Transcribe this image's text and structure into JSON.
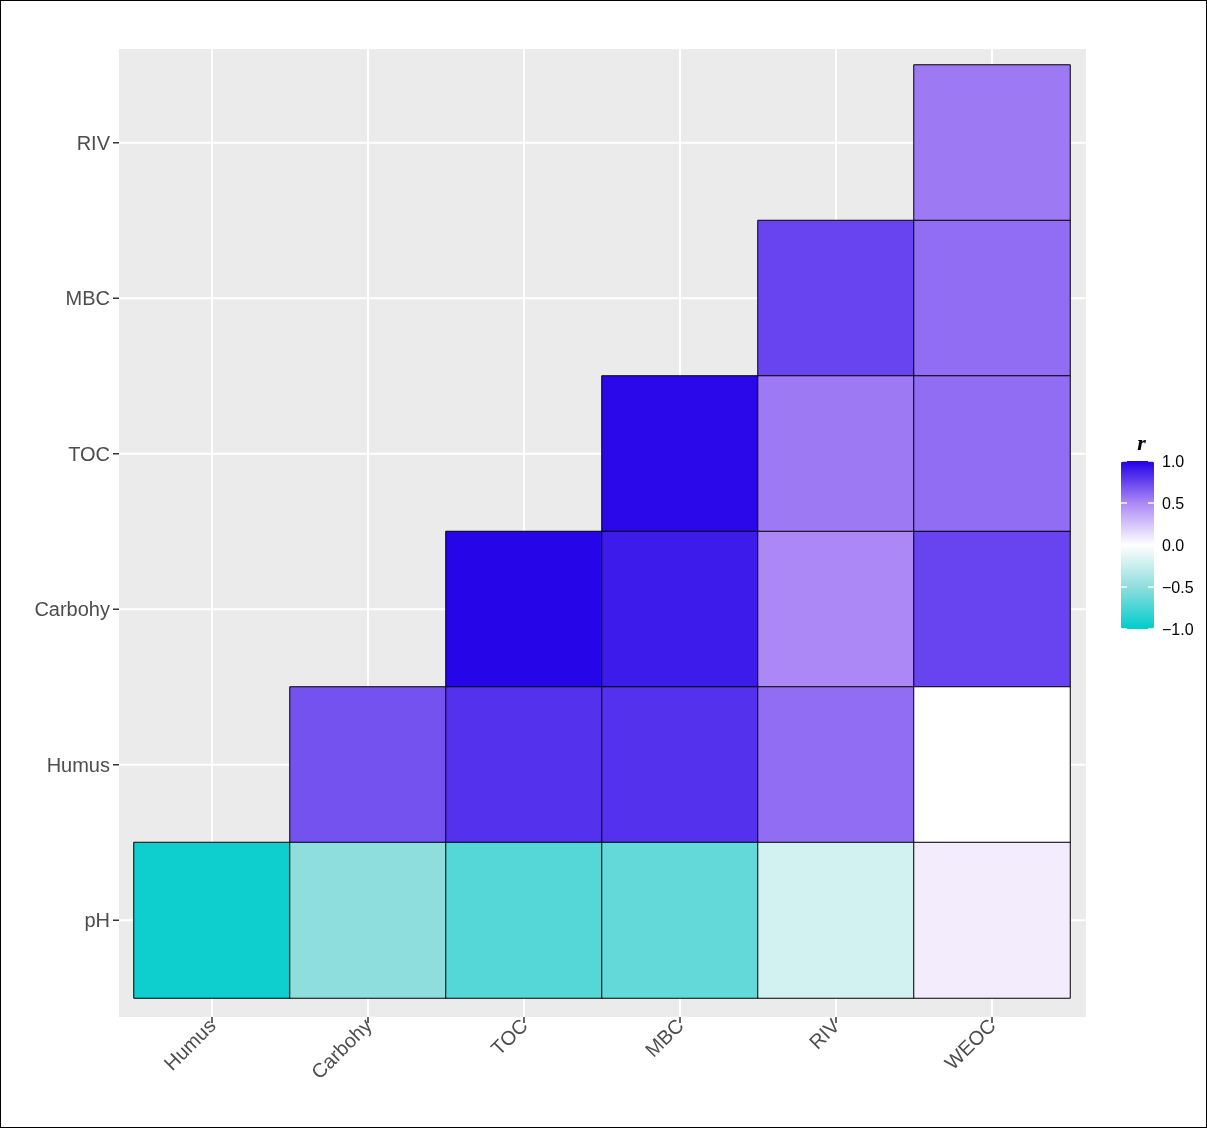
{
  "chart_data": {
    "type": "heatmap",
    "clabel": "r",
    "categories": [
      "Humus",
      "Carbohy",
      "TOC",
      "MBC",
      "RIV",
      "WEOC"
    ],
    "y_categories": [
      "RIV",
      "MBC",
      "TOC",
      "Carbohy",
      "Humus",
      "pH"
    ],
    "cells": [
      [
        null,
        null,
        null,
        null,
        null,
        0.55
      ],
      [
        null,
        null,
        null,
        null,
        0.75,
        0.6
      ],
      [
        null,
        null,
        null,
        0.97,
        0.55,
        0.6
      ],
      [
        null,
        null,
        0.98,
        0.9,
        0.5,
        0.75
      ],
      [
        null,
        0.7,
        0.82,
        0.82,
        0.6,
        0.0
      ],
      [
        -0.95,
        -0.5,
        -0.7,
        -0.65,
        -0.2,
        0.08
      ]
    ],
    "clim": [
      -1,
      1
    ],
    "cticks": [
      {
        "value": 1,
        "label": "1.0"
      },
      {
        "value": 0.5,
        "label": "0.5"
      },
      {
        "value": 0,
        "label": "0.0"
      },
      {
        "value": -0.5,
        "label": "−0.5"
      },
      {
        "value": -1,
        "label": "−1.0"
      }
    ],
    "grid": true
  }
}
